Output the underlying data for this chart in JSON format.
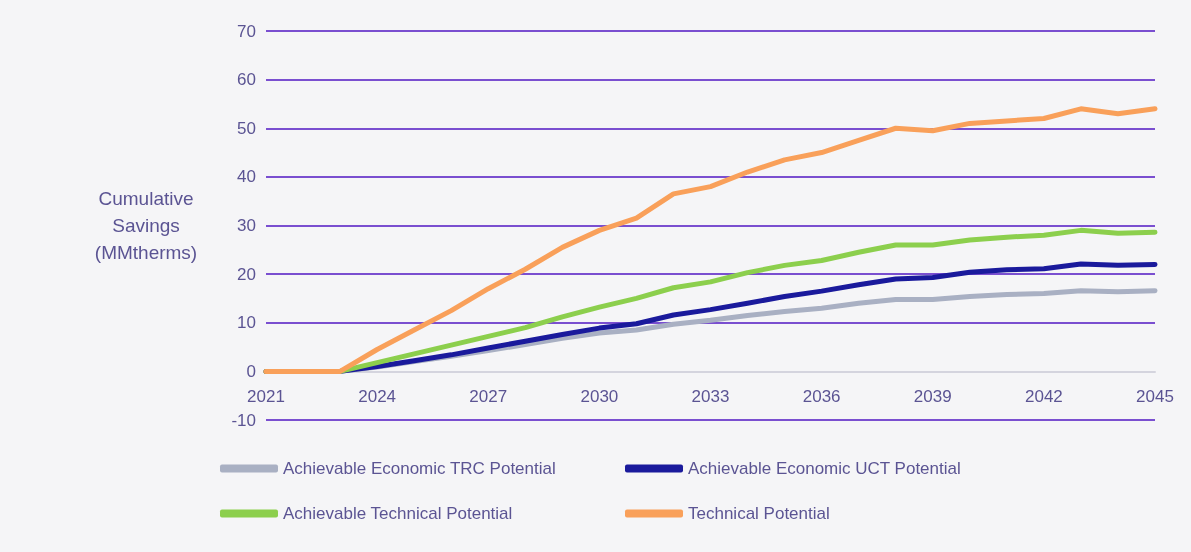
{
  "chart_data": {
    "type": "line",
    "ylabel": "Cumulative\nSavings\n(MMtherms)",
    "x": [
      2021,
      2022,
      2023,
      2024,
      2025,
      2026,
      2027,
      2028,
      2029,
      2030,
      2031,
      2032,
      2033,
      2034,
      2035,
      2036,
      2037,
      2038,
      2039,
      2040,
      2041,
      2042,
      2043,
      2044,
      2045
    ],
    "xlim": [
      2021,
      2045
    ],
    "xticks": [
      2021,
      2024,
      2027,
      2030,
      2033,
      2036,
      2039,
      2042,
      2045
    ],
    "ylim": [
      -10,
      70
    ],
    "yticks": [
      -10,
      0,
      10,
      20,
      30,
      40,
      50,
      60,
      70
    ],
    "grid": "y",
    "legend": "bottom",
    "marker": "none",
    "line_style": "solid",
    "series": [
      {
        "name": "Achievable Economic TRC Potential",
        "color": "#a9b0c3",
        "values": [
          0,
          0,
          0,
          0.9,
          2,
          3.1,
          4.3,
          5.5,
          6.8,
          7.9,
          8.5,
          9.7,
          10.5,
          11.5,
          12.3,
          13,
          14,
          14.8,
          14.8,
          15.4,
          15.8,
          16,
          16.6,
          16.4,
          16.6
        ]
      },
      {
        "name": "Achievable Economic UCT Potential",
        "color": "#1a1a9c",
        "values": [
          0,
          0,
          0,
          1,
          2.2,
          3.4,
          4.8,
          6.2,
          7.6,
          8.9,
          9.8,
          11.6,
          12.7,
          14,
          15.4,
          16.5,
          17.8,
          19,
          19.3,
          20.4,
          20.9,
          21.1,
          22.1,
          21.8,
          22
        ]
      },
      {
        "name": "Achievable Technical Potential",
        "color": "#8ccf4d",
        "values": [
          0,
          0,
          0,
          1.8,
          3.6,
          5.4,
          7.2,
          9,
          11.2,
          13.2,
          15,
          17.2,
          18.4,
          20.3,
          21.8,
          22.8,
          24.5,
          26,
          26,
          27,
          27.6,
          28,
          29,
          28.4,
          28.6
        ]
      },
      {
        "name": "Technical Potential",
        "color": "#f9a05a",
        "values": [
          0,
          0,
          0,
          4.5,
          8.5,
          12.5,
          17,
          21,
          25.5,
          29,
          31.5,
          36.5,
          38,
          41,
          43.5,
          45,
          47.5,
          50,
          49.5,
          51,
          51.5,
          52,
          54,
          53,
          54
        ]
      }
    ]
  }
}
